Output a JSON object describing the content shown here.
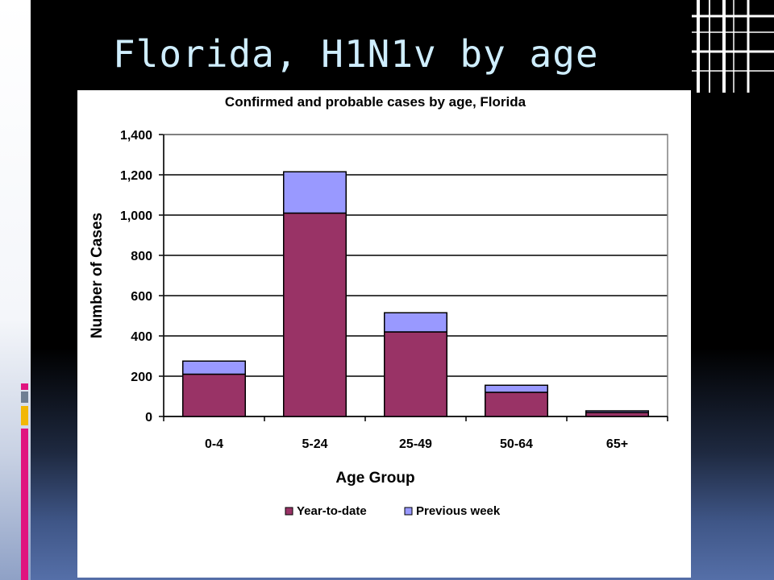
{
  "slide": {
    "title": "Florida, H1N1v by age"
  },
  "chart_data": {
    "type": "bar",
    "stacked": true,
    "title": "Confirmed and probable cases by age, Florida",
    "xlabel": "Age Group",
    "ylabel": "Number of Cases",
    "categories": [
      "0-4",
      "5-24",
      "25-49",
      "50-64",
      "65+"
    ],
    "series": [
      {
        "name": "Year-to-date",
        "values": [
          210,
          1010,
          420,
          120,
          20
        ],
        "color": "#993366"
      },
      {
        "name": "Previous week",
        "values": [
          65,
          205,
          95,
          35,
          8
        ],
        "color": "#9999ff"
      }
    ],
    "ylim": [
      0,
      1400
    ],
    "yticks": [
      0,
      200,
      400,
      600,
      800,
      1000,
      1200,
      1400
    ],
    "ytick_labels": [
      "0",
      "200",
      "400",
      "600",
      "800",
      "1,000",
      "1,200",
      "1,400"
    ],
    "grid": true,
    "legend_position": "bottom",
    "accent_colors": [
      "#e0147f",
      "#f2b705",
      "#6f7e93"
    ]
  }
}
